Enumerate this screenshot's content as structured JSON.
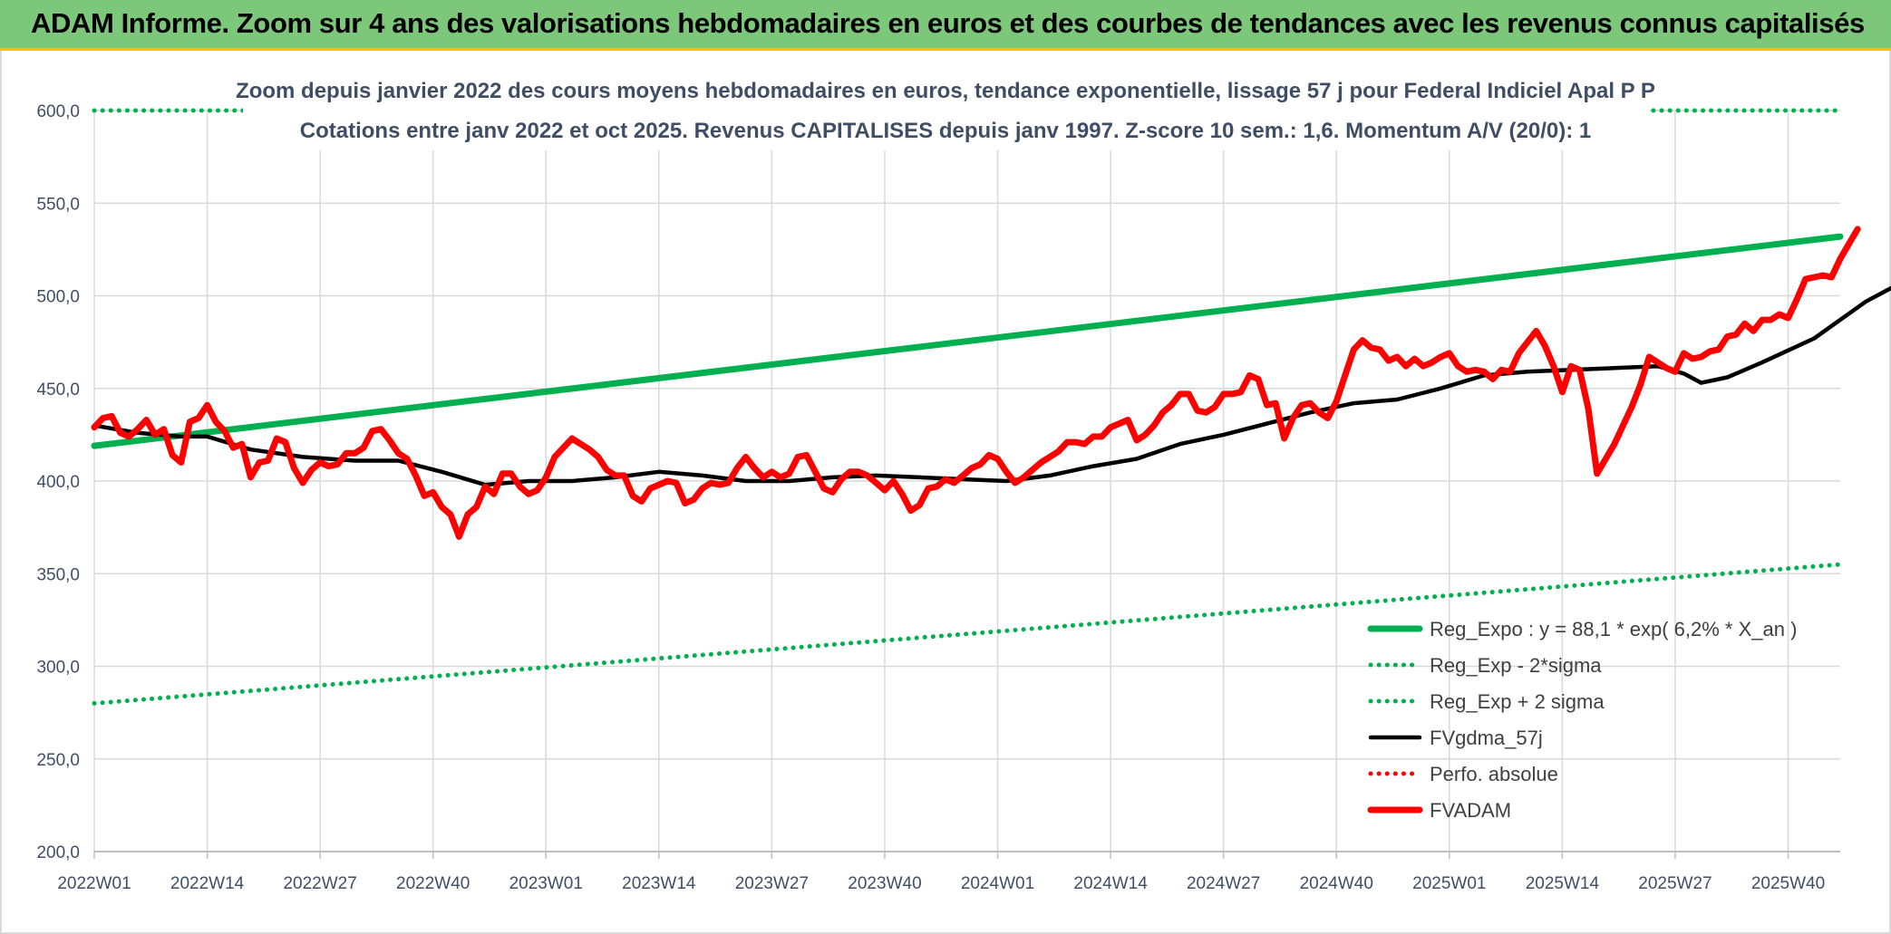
{
  "banner": {
    "title": "ADAM Informe. Zoom sur 4 ans des valorisations hebdomadaires en euros et des courbes de tendances avec les revenus connus capitalisés"
  },
  "colors": {
    "banner_bg": "#7dc77b",
    "trend": "#00b050",
    "smooth": "#000000",
    "price": "#ff0000",
    "axis_text": "#404e65"
  },
  "chart_data": {
    "type": "line",
    "title": "Zoom depuis janvier 2022 des cours moyens hebdomadaires en euros, tendance exponentielle, lissage 57 j pour Federal Indiciel Apal P P",
    "subtitle": "Cotations entre janv 2022 et oct 2025. Revenus CAPITALISES depuis janv 1997. Z-score 10 sem.: 1,6. Momentum A/V (20/0): 1",
    "xlabel": "",
    "ylabel": "",
    "x_ticks": [
      "2022W01",
      "2022W14",
      "2022W27",
      "2022W40",
      "2023W01",
      "2023W14",
      "2023W27",
      "2023W40",
      "2024W01",
      "2024W14",
      "2024W27",
      "2024W40",
      "2025W01",
      "2025W14",
      "2025W27",
      "2025W40"
    ],
    "y_ticks": [
      "200,0",
      "250,0",
      "300,0",
      "350,0",
      "400,0",
      "450,0",
      "500,0",
      "550,0",
      "600,0"
    ],
    "ylim": [
      200,
      600
    ],
    "x_range_weeks": [
      0,
      201
    ],
    "grid": true,
    "legend_position": "bottom-right",
    "series": [
      {
        "name": "Reg_Expo : y = 88,1 * exp( 6,2% *  X_an )",
        "style": "solid-thick",
        "color": "#00b050",
        "points": [
          [
            0,
            419
          ],
          [
            201,
            532
          ]
        ]
      },
      {
        "name": "Reg_Exp - 2*sigma",
        "style": "dotted",
        "color": "#00b050",
        "points": [
          [
            0,
            280
          ],
          [
            201,
            355
          ]
        ]
      },
      {
        "name": "Reg_Exp + 2 sigma",
        "style": "dotted",
        "color": "#00b050",
        "points": [
          [
            0,
            600
          ],
          [
            201,
            600
          ]
        ]
      },
      {
        "name": "FVgdma_57j",
        "style": "solid",
        "color": "#000000",
        "points": [
          [
            0,
            430
          ],
          [
            5,
            426
          ],
          [
            10,
            424
          ],
          [
            13,
            424
          ],
          [
            18,
            417
          ],
          [
            24,
            413
          ],
          [
            30,
            411
          ],
          [
            35,
            411
          ],
          [
            40,
            405
          ],
          [
            45,
            398
          ],
          [
            50,
            400
          ],
          [
            55,
            400
          ],
          [
            60,
            402
          ],
          [
            65,
            405
          ],
          [
            70,
            403
          ],
          [
            75,
            400
          ],
          [
            80,
            400
          ],
          [
            85,
            402
          ],
          [
            90,
            403
          ],
          [
            95,
            402
          ],
          [
            100,
            401
          ],
          [
            105,
            400
          ],
          [
            110,
            403
          ],
          [
            115,
            408
          ],
          [
            120,
            412
          ],
          [
            125,
            420
          ],
          [
            130,
            425
          ],
          [
            135,
            431
          ],
          [
            140,
            437
          ],
          [
            145,
            442
          ],
          [
            150,
            444
          ],
          [
            155,
            450
          ],
          [
            160,
            457
          ],
          [
            165,
            459
          ],
          [
            170,
            460
          ],
          [
            175,
            461
          ],
          [
            180,
            462
          ],
          [
            183,
            458
          ],
          [
            185,
            453
          ],
          [
            188,
            456
          ],
          [
            192,
            464
          ],
          [
            198,
            477
          ],
          [
            204,
            497
          ],
          [
            210,
            512
          ],
          [
            214,
            519
          ]
        ]
      },
      {
        "name": "Perfo. absolue",
        "style": "dotted",
        "color": "#ff0000",
        "points": []
      },
      {
        "name": "FVADAM",
        "style": "solid-thick",
        "color": "#ff0000",
        "points": [
          [
            0,
            429
          ],
          [
            1,
            434
          ],
          [
            2,
            435
          ],
          [
            3,
            426
          ],
          [
            4,
            424
          ],
          [
            5,
            428
          ],
          [
            6,
            433
          ],
          [
            7,
            425
          ],
          [
            8,
            428
          ],
          [
            9,
            414
          ],
          [
            10,
            410
          ],
          [
            11,
            432
          ],
          [
            12,
            434
          ],
          [
            13,
            441
          ],
          [
            14,
            432
          ],
          [
            15,
            427
          ],
          [
            16,
            418
          ],
          [
            17,
            420
          ],
          [
            18,
            402
          ],
          [
            19,
            410
          ],
          [
            20,
            411
          ],
          [
            21,
            423
          ],
          [
            22,
            421
          ],
          [
            23,
            407
          ],
          [
            24,
            399
          ],
          [
            25,
            406
          ],
          [
            26,
            410
          ],
          [
            27,
            408
          ],
          [
            28,
            409
          ],
          [
            29,
            415
          ],
          [
            30,
            415
          ],
          [
            31,
            418
          ],
          [
            32,
            427
          ],
          [
            33,
            428
          ],
          [
            34,
            422
          ],
          [
            35,
            415
          ],
          [
            36,
            412
          ],
          [
            37,
            403
          ],
          [
            38,
            392
          ],
          [
            39,
            394
          ],
          [
            40,
            386
          ],
          [
            41,
            382
          ],
          [
            42,
            370
          ],
          [
            43,
            382
          ],
          [
            44,
            386
          ],
          [
            45,
            397
          ],
          [
            46,
            393
          ],
          [
            47,
            404
          ],
          [
            48,
            404
          ],
          [
            49,
            397
          ],
          [
            50,
            393
          ],
          [
            51,
            395
          ],
          [
            52,
            402
          ],
          [
            53,
            413
          ],
          [
            54,
            418
          ],
          [
            55,
            423
          ],
          [
            56,
            420
          ],
          [
            57,
            417
          ],
          [
            58,
            413
          ],
          [
            59,
            406
          ],
          [
            60,
            403
          ],
          [
            61,
            403
          ],
          [
            62,
            392
          ],
          [
            63,
            389
          ],
          [
            64,
            396
          ],
          [
            65,
            398
          ],
          [
            66,
            400
          ],
          [
            67,
            399
          ],
          [
            68,
            388
          ],
          [
            69,
            390
          ],
          [
            70,
            396
          ],
          [
            71,
            399
          ],
          [
            72,
            398
          ],
          [
            73,
            399
          ],
          [
            74,
            407
          ],
          [
            75,
            413
          ],
          [
            76,
            407
          ],
          [
            77,
            402
          ],
          [
            78,
            405
          ],
          [
            79,
            402
          ],
          [
            80,
            404
          ],
          [
            81,
            413
          ],
          [
            82,
            414
          ],
          [
            83,
            405
          ],
          [
            84,
            396
          ],
          [
            85,
            394
          ],
          [
            86,
            401
          ],
          [
            87,
            405
          ],
          [
            88,
            405
          ],
          [
            89,
            403
          ],
          [
            90,
            399
          ],
          [
            91,
            395
          ],
          [
            92,
            400
          ],
          [
            93,
            393
          ],
          [
            94,
            384
          ],
          [
            95,
            387
          ],
          [
            96,
            396
          ],
          [
            97,
            397
          ],
          [
            98,
            401
          ],
          [
            99,
            399
          ],
          [
            100,
            403
          ],
          [
            101,
            407
          ],
          [
            102,
            409
          ],
          [
            103,
            414
          ],
          [
            104,
            412
          ],
          [
            105,
            405
          ],
          [
            106,
            399
          ],
          [
            107,
            402
          ],
          [
            108,
            406
          ],
          [
            109,
            410
          ],
          [
            110,
            413
          ],
          [
            111,
            416
          ],
          [
            112,
            421
          ],
          [
            113,
            421
          ],
          [
            114,
            420
          ],
          [
            115,
            424
          ],
          [
            116,
            424
          ],
          [
            117,
            429
          ],
          [
            118,
            431
          ],
          [
            119,
            433
          ],
          [
            120,
            422
          ],
          [
            121,
            425
          ],
          [
            122,
            430
          ],
          [
            123,
            437
          ],
          [
            124,
            441
          ],
          [
            125,
            447
          ],
          [
            126,
            447
          ],
          [
            127,
            438
          ],
          [
            128,
            437
          ],
          [
            129,
            440
          ],
          [
            130,
            447
          ],
          [
            131,
            447
          ],
          [
            132,
            448
          ],
          [
            133,
            457
          ],
          [
            134,
            455
          ],
          [
            135,
            441
          ],
          [
            136,
            442
          ],
          [
            137,
            423
          ],
          [
            138,
            434
          ],
          [
            139,
            441
          ],
          [
            140,
            442
          ],
          [
            141,
            437
          ],
          [
            142,
            434
          ],
          [
            143,
            443
          ],
          [
            144,
            457
          ],
          [
            145,
            471
          ],
          [
            146,
            476
          ],
          [
            147,
            472
          ],
          [
            148,
            471
          ],
          [
            149,
            465
          ],
          [
            150,
            467
          ],
          [
            151,
            462
          ],
          [
            152,
            466
          ],
          [
            153,
            462
          ],
          [
            154,
            464
          ],
          [
            155,
            467
          ],
          [
            156,
            469
          ],
          [
            157,
            462
          ],
          [
            158,
            459
          ],
          [
            159,
            460
          ],
          [
            160,
            459
          ],
          [
            161,
            455
          ],
          [
            162,
            460
          ],
          [
            163,
            459
          ],
          [
            164,
            469
          ],
          [
            165,
            475
          ],
          [
            166,
            481
          ],
          [
            167,
            473
          ],
          [
            168,
            462
          ],
          [
            169,
            448
          ],
          [
            170,
            462
          ],
          [
            171,
            460
          ],
          [
            172,
            439
          ],
          [
            173,
            404
          ],
          [
            174,
            412
          ],
          [
            175,
            420
          ],
          [
            176,
            430
          ],
          [
            177,
            440
          ],
          [
            178,
            452
          ],
          [
            179,
            467
          ],
          [
            180,
            464
          ],
          [
            181,
            461
          ],
          [
            182,
            459
          ],
          [
            183,
            469
          ],
          [
            184,
            466
          ],
          [
            185,
            467
          ],
          [
            186,
            470
          ],
          [
            187,
            471
          ],
          [
            188,
            478
          ],
          [
            189,
            479
          ],
          [
            190,
            485
          ],
          [
            191,
            481
          ],
          [
            192,
            487
          ],
          [
            193,
            487
          ],
          [
            194,
            490
          ],
          [
            195,
            488
          ],
          [
            196,
            498
          ],
          [
            197,
            509
          ],
          [
            198,
            510
          ],
          [
            199,
            511
          ],
          [
            200,
            510
          ],
          [
            201,
            520
          ],
          [
            202,
            528
          ],
          [
            203,
            536
          ]
        ]
      }
    ]
  }
}
